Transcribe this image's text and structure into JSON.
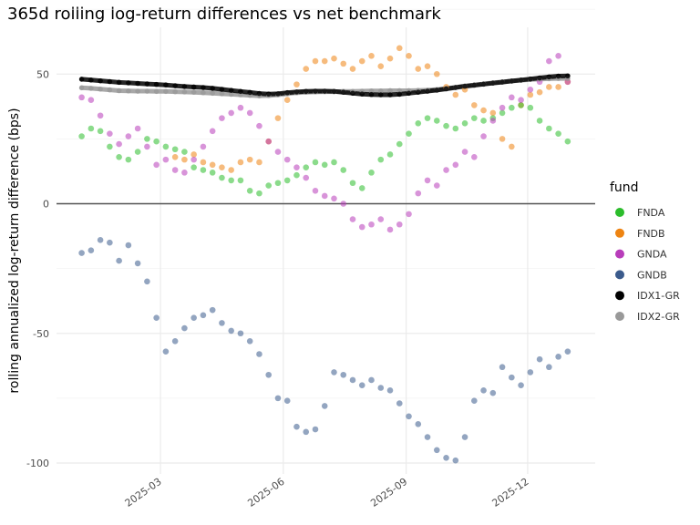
{
  "chart_data": {
    "type": "scatter",
    "title": "365d rolling log-return differences vs net benchmark",
    "xlabel": "",
    "ylabel": "rolling annualized log-return difference (bps)",
    "x_ticks": [
      "2025-03",
      "2025-06",
      "2025-09",
      "2025-12"
    ],
    "y_ticks": [
      50,
      0,
      -50,
      -100
    ],
    "ylim": [
      -105,
      68
    ],
    "xlim": [
      "2024-12-13",
      "2026-01-19"
    ],
    "grid": true,
    "legend": {
      "title": "fund",
      "placement": "right"
    },
    "x": [
      "2025-01-01",
      "2025-01-08",
      "2025-01-15",
      "2025-01-22",
      "2025-01-29",
      "2025-02-05",
      "2025-02-12",
      "2025-02-19",
      "2025-02-26",
      "2025-03-05",
      "2025-03-12",
      "2025-03-19",
      "2025-03-26",
      "2025-04-02",
      "2025-04-09",
      "2025-04-16",
      "2025-04-23",
      "2025-04-30",
      "2025-05-07",
      "2025-05-14",
      "2025-05-21",
      "2025-05-28",
      "2025-06-04",
      "2025-06-11",
      "2025-06-18",
      "2025-06-25",
      "2025-07-02",
      "2025-07-09",
      "2025-07-16",
      "2025-07-23",
      "2025-07-30",
      "2025-08-06",
      "2025-08-13",
      "2025-08-20",
      "2025-08-27",
      "2025-09-03",
      "2025-09-10",
      "2025-09-17",
      "2025-09-24",
      "2025-10-01",
      "2025-10-08",
      "2025-10-15",
      "2025-10-22",
      "2025-10-29",
      "2025-11-05",
      "2025-11-12",
      "2025-11-19",
      "2025-11-26",
      "2025-12-03",
      "2025-12-10",
      "2025-12-17",
      "2025-12-24",
      "2025-12-31"
    ],
    "series": [
      {
        "name": "FNDA",
        "color": "#2cbd2c",
        "values": [
          26,
          29,
          28,
          22,
          18,
          17,
          20,
          25,
          24,
          22,
          21,
          20,
          14,
          13,
          12,
          10,
          9,
          9,
          5,
          4,
          7,
          8,
          9,
          11,
          14,
          16,
          15,
          16,
          13,
          8,
          6,
          12,
          17,
          19,
          23,
          27,
          31,
          33,
          32,
          30,
          29,
          31,
          33,
          32,
          33,
          35,
          37,
          38,
          37,
          32,
          29,
          27,
          24
        ]
      },
      {
        "name": "FNDB",
        "color": "#ee8412",
        "values": [
          null,
          null,
          null,
          null,
          null,
          null,
          null,
          null,
          null,
          null,
          18,
          17,
          19,
          16,
          15,
          14,
          13,
          16,
          17,
          16,
          24,
          33,
          40,
          46,
          52,
          55,
          55,
          56,
          54,
          52,
          55,
          57,
          53,
          56,
          60,
          57,
          52,
          53,
          50,
          45,
          42,
          44,
          38,
          36,
          35,
          25,
          22,
          38,
          42,
          43,
          45,
          45,
          47
        ]
      },
      {
        "name": "GNDA",
        "color": "#b83dba",
        "values": [
          41,
          40,
          34,
          27,
          23,
          26,
          29,
          22,
          15,
          17,
          13,
          12,
          17,
          22,
          28,
          33,
          35,
          37,
          35,
          30,
          24,
          20,
          17,
          14,
          10,
          5,
          3,
          2,
          0,
          -6,
          -9,
          -8,
          -6,
          -10,
          -8,
          -4,
          4,
          9,
          7,
          13,
          15,
          20,
          18,
          26,
          32,
          37,
          41,
          40,
          44,
          47,
          55,
          57,
          47
        ]
      },
      {
        "name": "GNDB",
        "color": "#3b5b8c",
        "values": [
          -19,
          -18,
          -14,
          -15,
          -22,
          -16,
          -23,
          -30,
          -44,
          -57,
          -53,
          -48,
          -44,
          -43,
          -41,
          -46,
          -49,
          -50,
          -53,
          -58,
          -66,
          -75,
          -76,
          -86,
          -88,
          -87,
          -78,
          -65,
          -66,
          -68,
          -70,
          -68,
          -71,
          -72,
          -77,
          -82,
          -85,
          -90,
          -95,
          -98,
          -99,
          -90,
          -76,
          -72,
          -73,
          -63,
          -67,
          -70,
          -65,
          -60,
          -63,
          -59,
          -57
        ]
      },
      {
        "name": "IDX1-GR",
        "color": "#000000",
        "values": [
          48.0,
          47.7,
          47.4,
          47.1,
          46.8,
          46.6,
          46.4,
          46.2,
          46.0,
          45.8,
          45.5,
          45.2,
          45.0,
          44.8,
          44.5,
          44.1,
          43.7,
          43.3,
          42.9,
          42.5,
          42.3,
          42.4,
          42.8,
          43.1,
          43.3,
          43.4,
          43.4,
          43.3,
          43.0,
          42.6,
          42.3,
          42.1,
          42.0,
          42.0,
          42.2,
          42.6,
          43.0,
          43.4,
          43.8,
          44.3,
          44.8,
          45.3,
          45.7,
          46.1,
          46.5,
          46.9,
          47.3,
          47.7,
          48.1,
          48.5,
          48.9,
          49.2,
          49.3
        ]
      },
      {
        "name": "IDX2-GR",
        "color": "#999999",
        "values": [
          44.7,
          44.5,
          44.2,
          43.9,
          43.6,
          43.5,
          43.4,
          43.4,
          43.3,
          43.3,
          43.2,
          43.1,
          43.0,
          42.8,
          42.6,
          42.4,
          42.2,
          42.0,
          41.8,
          41.6,
          41.7,
          42.0,
          42.4,
          42.8,
          43.0,
          43.1,
          43.2,
          43.2,
          43.3,
          43.3,
          43.4,
          43.5,
          43.5,
          43.6,
          43.6,
          43.6,
          43.7,
          43.8,
          44.0,
          44.4,
          44.9,
          45.4,
          45.8,
          46.2,
          46.6,
          47.0,
          47.3,
          47.6,
          47.9,
          48.1,
          48.2,
          48.3,
          48.3
        ]
      }
    ]
  }
}
